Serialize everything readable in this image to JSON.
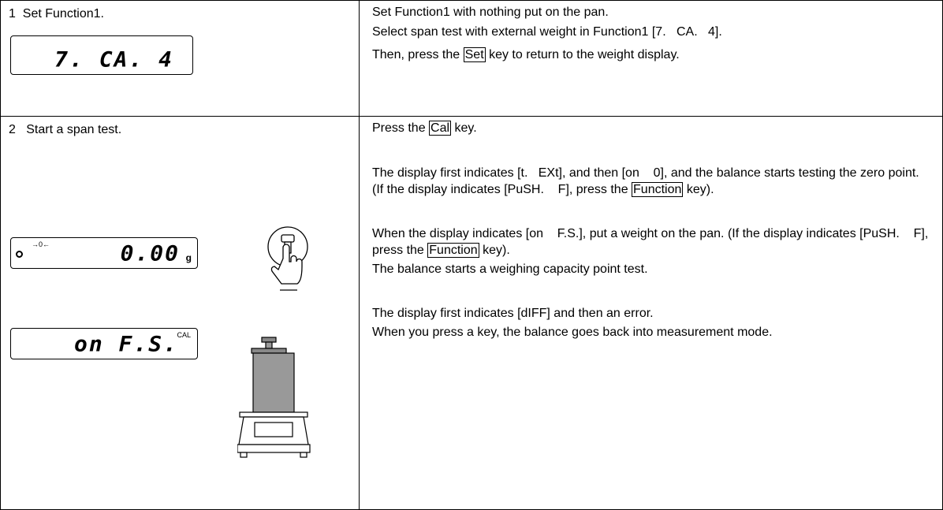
{
  "table": {
    "rows": [
      {
        "step": "1  Set Function1.",
        "displays": [
          {
            "main": "7. CA. 4"
          }
        ],
        "paragraphs": [
          [
            {
              "text": "Set Function1 with nothing put on the pan."
            }
          ],
          [
            {
              "text": "Select span test with external weight in Function1 [7.   CA.   4]."
            }
          ],
          [
            {
              "text": "Then, press the "
            },
            {
              "key": "Set"
            },
            {
              "text": " key to return to the weight display."
            }
          ]
        ]
      },
      {
        "step": "2   Start a span test.",
        "displays": [
          {
            "main": "0.00",
            "unit": "g",
            "indicator": "→0←"
          },
          {
            "main": "on F.S.",
            "indicator": "CAL"
          }
        ],
        "paragraphs": [
          [
            {
              "text": "Press the "
            },
            {
              "key": "Cal"
            },
            {
              "text": " key."
            }
          ],
          [
            {
              "text": "The display first indicates [t.   EXt], and then [on    0], and the balance starts testing the zero point. (If the display indicates [PuSH.    F], press the "
            },
            {
              "key": "Function"
            },
            {
              "text": " key)."
            }
          ],
          [
            {
              "text": "When the display indicates [on    F.S.], put a weight on the pan. (If the display indicates [PuSH.    F], press the "
            },
            {
              "key": "Function"
            },
            {
              "text": " key)."
            }
          ],
          [
            {
              "text": "The balance starts a weighing capacity point test."
            }
          ],
          [
            {
              "text": "The display first indicates [dIFF] and then an error."
            }
          ],
          [
            {
              "text": "When you press a key, the balance goes back into measurement mode."
            }
          ]
        ]
      }
    ]
  }
}
